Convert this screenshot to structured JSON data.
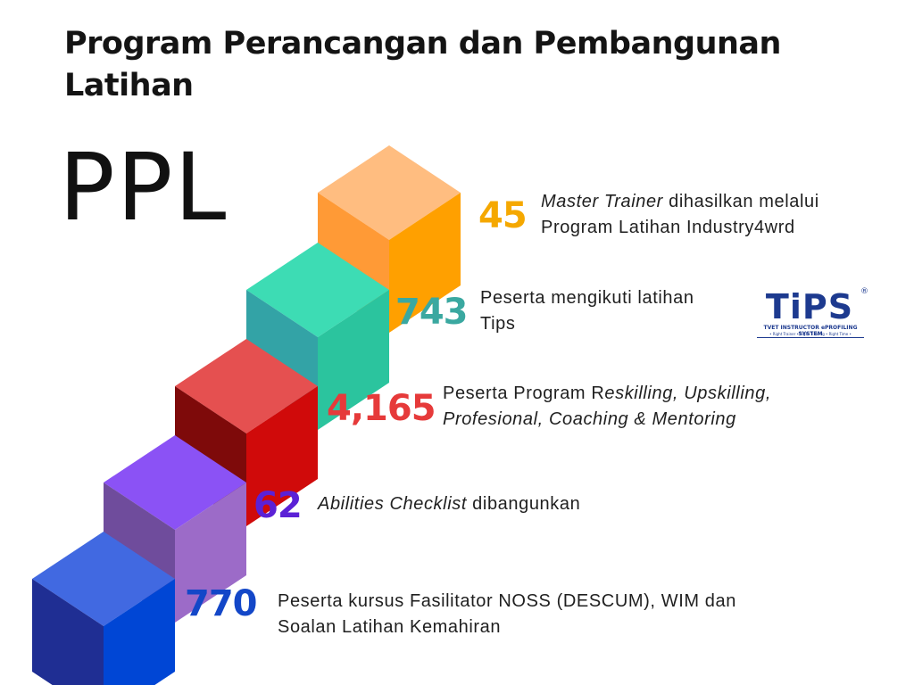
{
  "title": "Program Perancangan dan Pembangunan Latihan",
  "abbr": "PPL",
  "steps": [
    {
      "number": "45",
      "color": "#F5A800",
      "line1_italic": "Master Trainer",
      "line1_rest": " dihasilkan melalui",
      "line2": "Program Latihan Industry4wrd",
      "block": {
        "top": "#FFBD80",
        "left": "#FF9A36",
        "right": "#FFA000"
      }
    },
    {
      "number": "743",
      "color": "#3AA8A0",
      "line1": "Peserta mengikuti latihan",
      "line2": "Tips",
      "block": {
        "top": "#3DDCB4",
        "left": "#33A3A6",
        "right": "#2BC49E"
      }
    },
    {
      "number": "4,165",
      "color": "#E63A3A",
      "line1_plain": "Peserta Program R",
      "line1_italic": "eskilling, Upskilling,",
      "line2_italic": "Profesional, Coaching & Mentoring",
      "block": {
        "top": "#E55050",
        "left": "#7E0A0A",
        "right": "#D00A0A"
      }
    },
    {
      "number": "62",
      "color": "#5B21D6",
      "line1_italic": "Abilities Checklist",
      "line1_rest": " dibangunkan",
      "block": {
        "top": "#8B52F5",
        "left": "#6F4C9C",
        "right": "#9C6BC8"
      }
    },
    {
      "number": "770",
      "color": "#1347C8",
      "line1": "Peserta kursus Fasilitator NOSS (DESCUM), WIM dan",
      "line2": "Soalan Latihan Kemahiran",
      "block": {
        "top": "#4169E1",
        "left": "#1F2E93",
        "right": "#0046D5"
      }
    }
  ],
  "logo": {
    "word": "TiPS",
    "registered": "®",
    "subtitle": "TVET INSTRUCTOR ePROFILING SYSTEM",
    "tagline": "• Right Trainer • Right Training • Right Time •"
  }
}
